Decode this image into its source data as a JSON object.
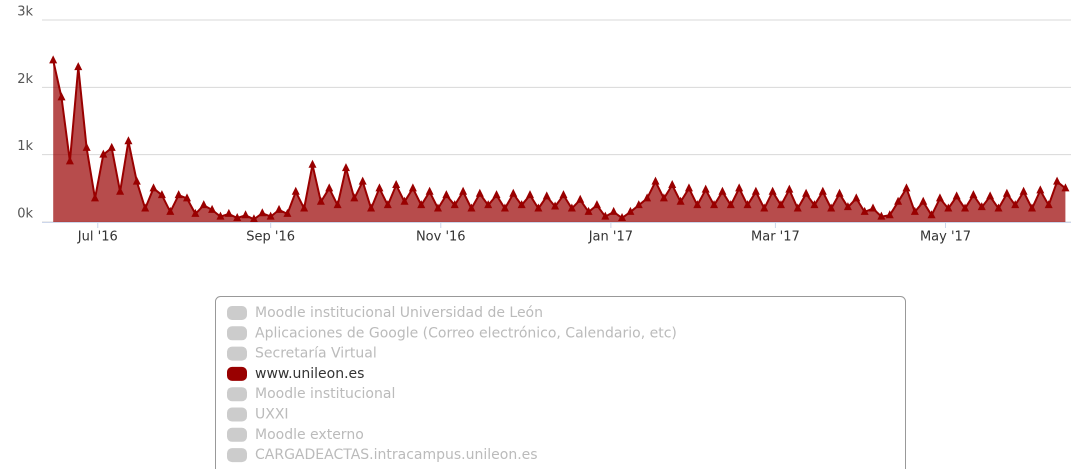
{
  "chart_data": {
    "type": "area",
    "x": [
      -16,
      -13,
      -10,
      -7,
      -4,
      -1,
      2,
      5,
      8,
      11,
      14,
      17,
      20,
      23,
      26,
      29,
      32,
      35,
      38,
      41,
      44,
      47,
      50,
      53,
      56,
      59,
      62,
      65,
      68,
      71,
      74,
      77,
      80,
      83,
      86,
      89,
      92,
      95,
      98,
      101,
      104,
      107,
      110,
      113,
      116,
      119,
      122,
      125,
      128,
      131,
      134,
      137,
      140,
      143,
      146,
      149,
      152,
      155,
      158,
      161,
      164,
      167,
      170,
      173,
      176,
      179,
      182,
      185,
      188,
      191,
      194,
      197,
      200,
      203,
      206,
      209,
      212,
      215,
      218,
      221,
      224,
      227,
      230,
      233,
      236,
      239,
      242,
      245,
      248,
      251,
      254,
      257,
      260,
      263,
      266,
      269,
      272,
      275,
      278,
      281,
      284,
      287,
      290,
      293,
      296,
      299,
      302,
      305,
      308,
      311,
      314,
      317,
      320,
      323,
      326,
      329,
      332,
      335,
      338,
      341,
      344,
      347
    ],
    "series": [
      {
        "name": "www.unileon.es",
        "color": "#990000",
        "values": [
          2400,
          1850,
          900,
          2300,
          1100,
          350,
          1000,
          1100,
          450,
          1200,
          600,
          200,
          500,
          400,
          150,
          400,
          350,
          120,
          250,
          180,
          80,
          120,
          60,
          100,
          40,
          130,
          80,
          180,
          120,
          450,
          200,
          850,
          300,
          500,
          250,
          800,
          350,
          600,
          200,
          500,
          250,
          550,
          300,
          500,
          250,
          450,
          200,
          400,
          250,
          450,
          200,
          420,
          250,
          400,
          200,
          420,
          250,
          400,
          200,
          380,
          230,
          400,
          200,
          330,
          150,
          250,
          80,
          150,
          60,
          150,
          250,
          350,
          600,
          350,
          550,
          300,
          500,
          250,
          480,
          250,
          450,
          250,
          500,
          250,
          450,
          200,
          450,
          250,
          480,
          200,
          420,
          250,
          450,
          200,
          420,
          220,
          350,
          150,
          200,
          80,
          100,
          300,
          500,
          150,
          300,
          100,
          350,
          200,
          380,
          200,
          400,
          220,
          380,
          200,
          420,
          250,
          450,
          200,
          470,
          250,
          600,
          500
        ]
      }
    ],
    "xlim": [
      -20,
      349
    ],
    "xticks": [
      {
        "value": 0,
        "label": "Jul '16"
      },
      {
        "value": 62,
        "label": "Sep '16"
      },
      {
        "value": 123,
        "label": "Nov '16"
      },
      {
        "value": 184,
        "label": "Jan '17"
      },
      {
        "value": 243,
        "label": "Mar '17"
      },
      {
        "value": 304,
        "label": "May '17"
      }
    ],
    "ylim": [
      0,
      3000
    ],
    "yticks": [
      {
        "value": 0,
        "label": "0k"
      },
      {
        "value": 1000,
        "label": "1k"
      },
      {
        "value": 2000,
        "label": "2k"
      },
      {
        "value": 3000,
        "label": "3k"
      }
    ],
    "grid": true,
    "legend_items": [
      {
        "name": "Moodle institucional Universidad de León",
        "visible": false
      },
      {
        "name": "Aplicaciones de Google (Correo electrónico, Calendario, etc)",
        "visible": false
      },
      {
        "name": "Secretaría Virtual",
        "visible": false
      },
      {
        "name": "www.unileon.es",
        "visible": true
      },
      {
        "name": "Moodle institucional",
        "visible": false
      },
      {
        "name": "UXXI",
        "visible": false
      },
      {
        "name": "Moodle externo",
        "visible": false
      },
      {
        "name": "CARGADEACTAS.intracampus.unileon.es",
        "visible": false
      }
    ]
  }
}
